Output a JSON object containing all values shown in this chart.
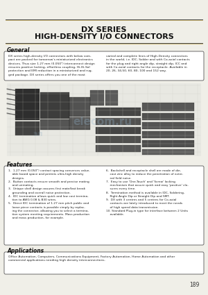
{
  "title_line1": "DX SERIES",
  "title_line2": "HIGH-DENSITY I/O CONNECTORS",
  "general_title": "General",
  "gen_left": "DX series high-density I/O connectors with below com-\npact are packed for tomorrow's miniaturized electronics\ndevices. Thus size 1.27 mm (0.050\") interconnect design\nensures positive locking, effortless coupling, Hi-Hi-Sal\nprotection and EMI reduction in a miniaturized and rug-\nged package. DX series offers you one of the most",
  "gen_right": "varied and complete lines of High-Density connectors\nin the world, i.e. IDC, Solder and with Co-axial contacts\nfor the plug and right angle dip, straight dip, ICC and\nwith Co-axial contacts for the receptacle. Available in\n20, 26, 34,50, 60, 80, 100 and 152 way.",
  "features_title": "Features",
  "feat_left": "1.  1.27 mm (0.050\") contact spacing conserves value-\n    able board space and permits ultra-high density\n    designs.\n2.  Button contacts ensure smooth and precise mating\n    and unmating.\n3.  Unique shell design assures first mate/last break\n    grounding and overall noise protection.\n4.  IDC termination allows quick and low cost termina-\n    tion to AWG 0.08 & B30 wires.\n5.  Direct IDC termination of 1.27 mm pitch public and\n    loose piece contacts is possible simply by replac-\n    ing the connector, allowing you to select a termina-\n    tion system meeting requirements. Mass production\n    and mass production, for example.",
  "feat_right": "6.  Backshell and receptacle shell are made of die-\n    cast zinc alloy to reduce the penetration of exter-\n    nal field noise.\n7.  Easy to use 'One-Touch' and 'Screw' locking\n    mechanism that assure quick and easy 'positive' clo-\n    sures every time.\n8.  Termination method is available in IDC, Soldering,\n    Right Angle Dip or Straight Dip and SMT.\n9.  DX with 3 centres and 5 centres for Co-axial\n    contacts are lately introduced to meet the needs\n    of high speed data transmission.\n10. Standard Plug-in type for interface between 2 Units\n    available.",
  "applications_title": "Applications",
  "app_text": "Office Automation, Computers, Communications Equipment, Factory Automation, Home Automation and other\ncommercial applications needing high density interconnections.",
  "page_number": "189",
  "bg_color": "#f0efe8",
  "box_bg": "#ffffff",
  "title_color": "#111111",
  "text_color": "#222222",
  "section_title_color": "#111111",
  "border_color": "#555555",
  "line_color": "#444444",
  "accent_color": "#b8942a"
}
